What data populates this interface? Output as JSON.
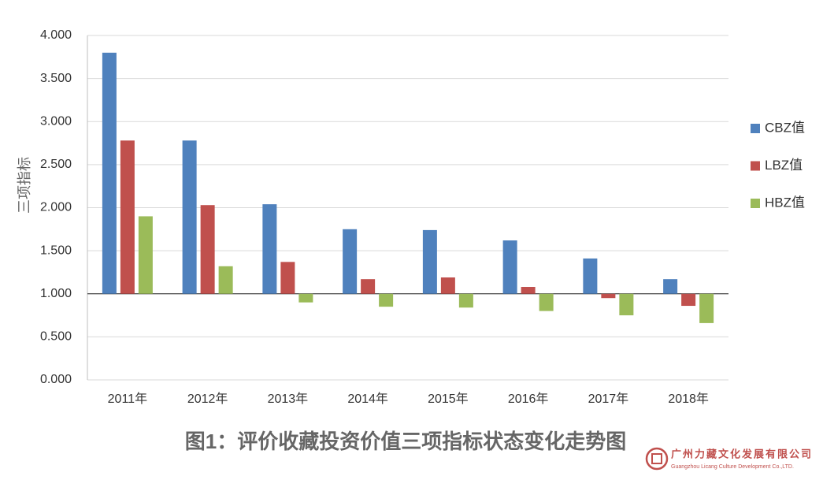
{
  "chart_data": {
    "type": "bar",
    "title": "图1：评价收藏投资价值三项指标状态变化走势图",
    "y_label": "三项指标",
    "categories": [
      "2011年",
      "2012年",
      "2013年",
      "2014年",
      "2015年",
      "2016年",
      "2017年",
      "2018年"
    ],
    "series": [
      {
        "name": "CBZ值",
        "color": "#4f81bd",
        "values": [
          3.8,
          2.78,
          2.04,
          1.75,
          1.74,
          1.62,
          1.41,
          1.17
        ]
      },
      {
        "name": "LBZ值",
        "color": "#c0504d",
        "values": [
          2.78,
          2.03,
          1.37,
          1.17,
          1.19,
          1.08,
          0.95,
          0.86
        ]
      },
      {
        "name": "HBZ值",
        "color": "#9bbb59",
        "values": [
          1.9,
          1.32,
          0.9,
          0.85,
          0.84,
          0.8,
          0.75,
          0.66
        ]
      }
    ],
    "bar_baseline": 1,
    "ylim": [
      0,
      4
    ],
    "yticks": [
      {
        "value": 0,
        "label": "0.000"
      },
      {
        "value": 0.5,
        "label": "0.500"
      },
      {
        "value": 1,
        "label": "1.000"
      },
      {
        "value": 1.5,
        "label": "1.500"
      },
      {
        "value": 2,
        "label": "2.000"
      },
      {
        "value": 2.5,
        "label": "2.500"
      },
      {
        "value": 3,
        "label": "3.000"
      },
      {
        "value": 3.5,
        "label": "3.500"
      },
      {
        "value": 4,
        "label": "4.000"
      }
    ],
    "grid": true,
    "legend": "right"
  },
  "watermark": {
    "name": "广州力藏文化发展有限公司",
    "subname": "Guangzhou Licang Culture Development Co.,LTD."
  }
}
